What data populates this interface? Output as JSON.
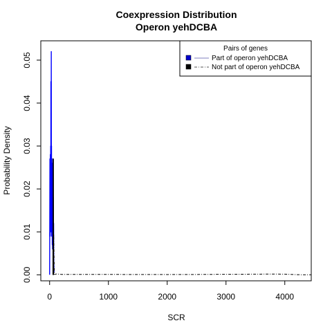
{
  "chart_data": {
    "type": "line",
    "title": "Coexpression Distribution",
    "subtitle": "Operon yehDCBA",
    "xlabel": "SCR",
    "ylabel": "Probability Density",
    "xlim": [
      -150,
      4450
    ],
    "ylim": [
      -0.0014,
      0.0545
    ],
    "x_ticks": [
      "0",
      "1000",
      "2000",
      "3000",
      "4000"
    ],
    "y_ticks": [
      "0.00",
      "0.01",
      "0.02",
      "0.03",
      "0.04",
      "0.05"
    ],
    "grid": false,
    "legend": {
      "title": "Pairs of genes",
      "placement": "top-right",
      "entries": [
        "Part of operon yehDCBA",
        "Not part of operon yehDCBA"
      ]
    },
    "series": [
      {
        "name": "Part of operon yehDCBA",
        "color": "#0000ff",
        "style": "solid",
        "x": [
          0,
          5,
          10,
          12,
          15,
          18,
          20,
          22,
          25,
          28,
          30,
          32,
          35,
          38,
          40,
          42,
          45,
          48,
          50,
          52,
          55,
          58,
          60,
          62,
          65,
          68,
          70,
          75
        ],
        "values": [
          0,
          0.027,
          0.009,
          0.028,
          0.012,
          0.03,
          0.01,
          0.045,
          0.015,
          0.052,
          0.011,
          0.03,
          0.009,
          0.026,
          0.012,
          0.02,
          0.007,
          0.025,
          0.006,
          0.027,
          0.01,
          0.022,
          0.006,
          0.018,
          0.005,
          0.012,
          0.003,
          0.0005
        ]
      },
      {
        "name": "Not part of operon yehDCBA",
        "color": "#000000",
        "style": "dashed",
        "x": [
          60,
          70,
          80,
          120,
          200,
          400,
          800,
          1200,
          1600,
          2000,
          2400,
          2800,
          3200,
          3600,
          3800,
          4000,
          4100,
          4200,
          4300,
          4450
        ],
        "values": [
          0.0,
          0.0095,
          0.0001,
          0.0002,
          0.0001,
          0.0001,
          0.0001,
          8e-05,
          7e-05,
          6e-05,
          7e-05,
          0.0001,
          0.00012,
          0.00016,
          0.00018,
          0.00015,
          0.0001,
          4e-05,
          1e-05,
          0
        ]
      },
      {
        "name": "",
        "color": "#000000",
        "style": "solid",
        "x": [
          55,
          57,
          60,
          62,
          64,
          66,
          68
        ],
        "values": [
          0.0,
          0.027,
          0.0,
          0.027,
          0.0,
          0.027,
          0.0
        ]
      }
    ]
  }
}
